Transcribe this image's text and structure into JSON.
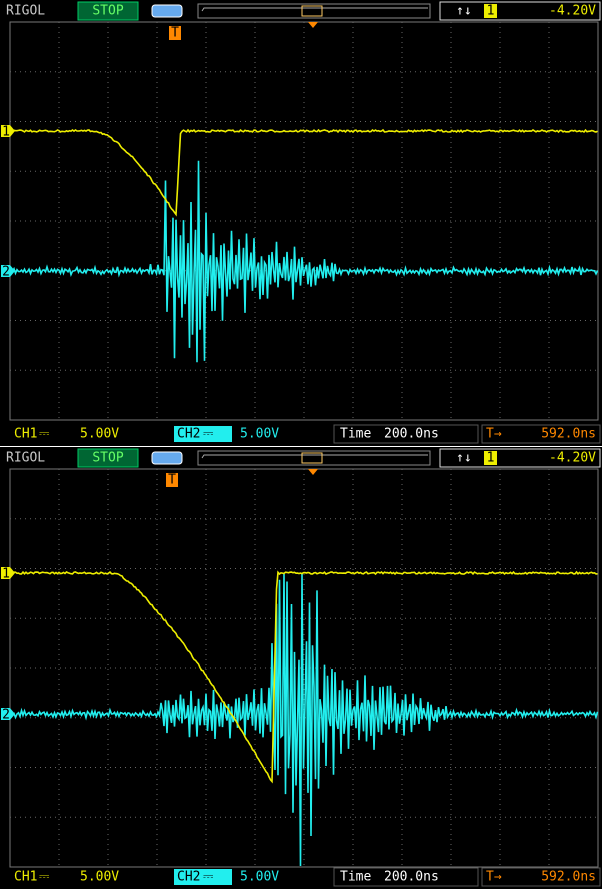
{
  "screens": [
    {
      "header": {
        "brand": "RIGOL",
        "status": "STOP",
        "trigger_slope": "↑↓",
        "trigger_source": "1",
        "trigger_level": "-4.20V"
      },
      "markers": {
        "trigger": "T",
        "ch1": "1",
        "ch2": "2"
      },
      "footer": {
        "ch1": "CH1",
        "ch1_coupling": "⎓",
        "ch1_scale": "5.00V",
        "ch2": "CH2",
        "ch2_coupling": "⎓",
        "ch2_scale": "5.00V",
        "time_label": "Time",
        "time_scale": "200.0ns",
        "trigger_offset_icon": "T→",
        "trigger_offset": "592.0ns"
      }
    },
    {
      "header": {
        "brand": "RIGOL",
        "status": "STOP",
        "trigger_slope": "↑↓",
        "trigger_source": "1",
        "trigger_level": "-4.20V"
      },
      "markers": {
        "trigger": "T",
        "ch1": "1",
        "ch2": "2"
      },
      "footer": {
        "ch1": "CH1",
        "ch1_coupling": "⎓",
        "ch1_scale": "5.00V",
        "ch2": "CH2",
        "ch2_coupling": "⎓",
        "ch2_scale": "5.00V",
        "time_label": "Time",
        "time_scale": "200.0ns",
        "trigger_offset_icon": "T→",
        "trigger_offset": "592.0ns"
      }
    }
  ]
}
